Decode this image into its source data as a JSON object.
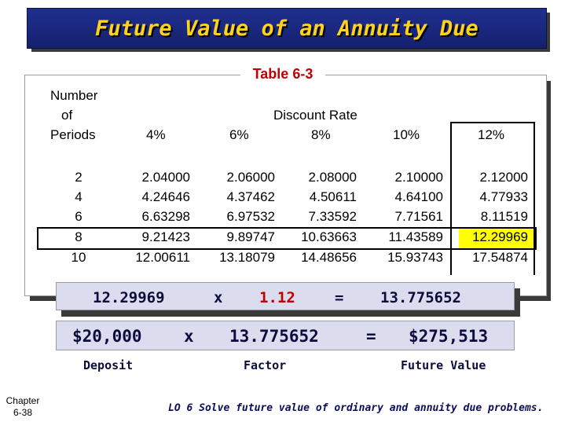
{
  "title": "Future Value of an Annuity Due",
  "table_label": "Table 6-3",
  "table": {
    "periods_header": [
      "Number",
      "of",
      "Periods"
    ],
    "discount_rate_label": "Discount Rate",
    "rates": [
      "4%",
      "6%",
      "8%",
      "10%",
      "12%"
    ],
    "rows": [
      {
        "period": "2",
        "values": [
          "2.04000",
          "2.06000",
          "2.08000",
          "2.10000",
          "2.12000"
        ]
      },
      {
        "period": "4",
        "values": [
          "4.24646",
          "4.37462",
          "4.50611",
          "4.64100",
          "4.77933"
        ]
      },
      {
        "period": "6",
        "values": [
          "6.63298",
          "6.97532",
          "7.33592",
          "7.71561",
          "8.11519"
        ]
      },
      {
        "period": "8",
        "values": [
          "9.21423",
          "9.89747",
          "10.63663",
          "11.43589",
          "12.29969"
        ]
      },
      {
        "period": "10",
        "values": [
          "12.00611",
          "13.18079",
          "14.48656",
          "15.93743",
          "17.54874"
        ]
      }
    ]
  },
  "calc1": {
    "a": "12.29969",
    "op1": "x",
    "b": "1.12",
    "op2": "=",
    "result": "13.775652"
  },
  "calc2": {
    "a": "$20,000",
    "op1": "x",
    "b": "13.775652",
    "op2": "=",
    "result": "$275,513"
  },
  "labels": {
    "deposit": "Deposit",
    "factor": "Factor",
    "future_value": "Future Value"
  },
  "footer": {
    "chapter": "Chapter",
    "page": "6-38",
    "lo": "LO 6 Solve future value of ordinary and annuity due problems."
  },
  "colors": {
    "title_bg": "#1f2f8f",
    "title_text": "#ffd21e",
    "table_label": "#c00000",
    "highlight": "#ffff00",
    "accent_red": "#c00000"
  }
}
